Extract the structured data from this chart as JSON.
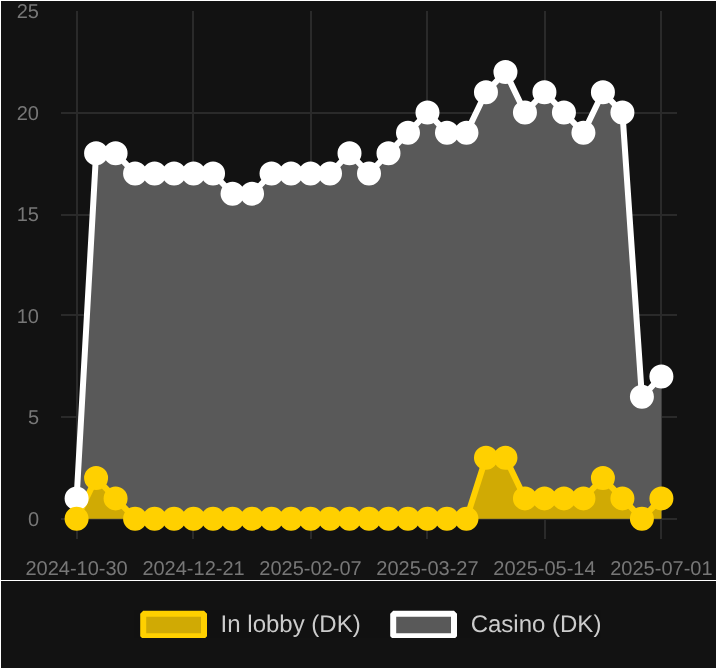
{
  "chart_data": {
    "type": "area",
    "categories": [
      "2024-10-30",
      null,
      null,
      null,
      null,
      null,
      "2024-12-21",
      null,
      null,
      null,
      null,
      null,
      "2025-02-07",
      null,
      null,
      null,
      null,
      null,
      "2025-03-27",
      null,
      null,
      null,
      null,
      null,
      "2025-05-14",
      null,
      null,
      null,
      null,
      null,
      "2025-07-01"
    ],
    "series": [
      {
        "name": "Casino (DK)",
        "color": "#ffffff",
        "values": [
          1,
          18,
          18,
          17,
          17,
          17,
          17,
          17,
          16,
          16,
          17,
          17,
          17,
          17,
          18,
          17,
          18,
          19,
          20,
          19,
          19,
          21,
          22,
          20,
          21,
          20,
          19,
          21,
          20,
          6,
          7
        ]
      },
      {
        "name": "In lobby (DK)",
        "color": "#ffd000",
        "values": [
          0,
          2,
          1,
          0,
          0,
          0,
          0,
          0,
          0,
          0,
          0,
          0,
          0,
          0,
          0,
          0,
          0,
          0,
          0,
          0,
          0,
          3,
          3,
          1,
          1,
          1,
          1,
          2,
          1,
          0,
          1
        ]
      }
    ],
    "ylim": [
      -1,
      25
    ],
    "yticks": [
      0,
      5,
      10,
      15,
      20,
      25
    ],
    "grid": true,
    "legend": "bottom",
    "marker": "circle"
  }
}
